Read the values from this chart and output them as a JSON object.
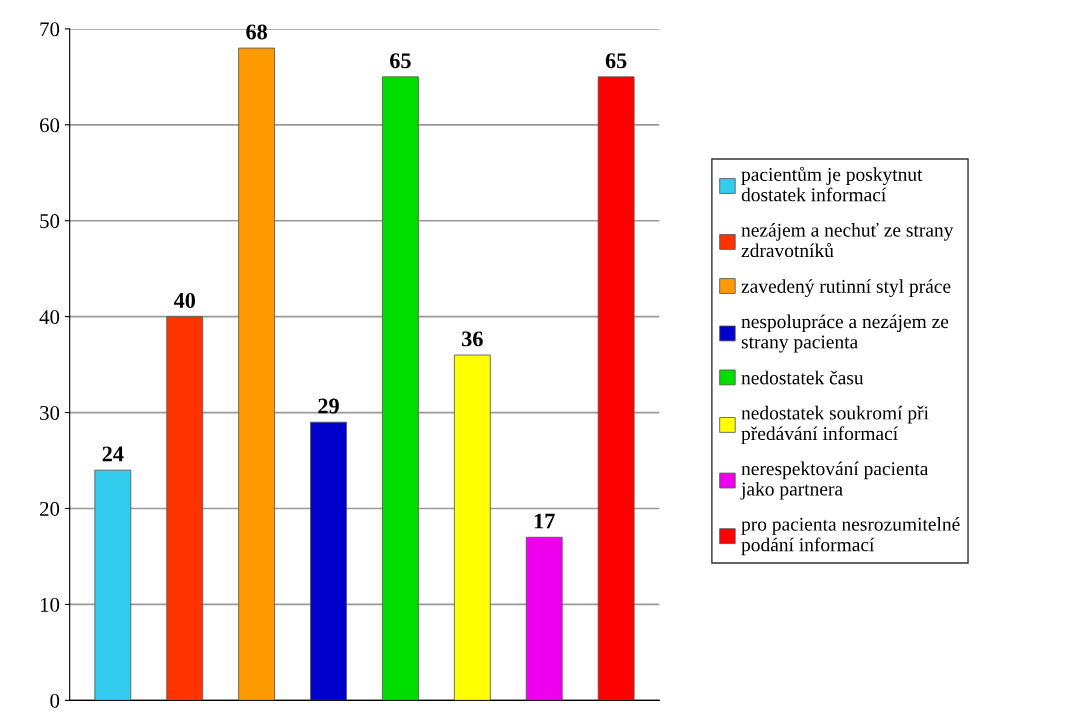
{
  "chart_data": {
    "type": "bar",
    "categories": [
      null,
      null,
      null,
      null,
      null,
      null,
      null,
      null
    ],
    "series": [
      {
        "name": "pacientům je poskytnut\ndostatek informací",
        "color": "#33ccee",
        "values": [
          24,
          null,
          null,
          null,
          null,
          null,
          null,
          null
        ]
      },
      {
        "name": "nezájem a nechuť ze strany\nzdravotníků",
        "color": "#ff3300",
        "values": [
          null,
          40,
          null,
          null,
          null,
          null,
          null,
          null
        ]
      },
      {
        "name": "zavedený rutinní styl práce",
        "color": "#ff9900",
        "values": [
          null,
          null,
          68,
          null,
          null,
          null,
          null,
          null
        ]
      },
      {
        "name": "nespolupráce a nezájem ze\nstrany pacienta",
        "color": "#0000cc",
        "values": [
          null,
          null,
          null,
          29,
          null,
          null,
          null,
          null
        ]
      },
      {
        "name": "nedostatek času",
        "color": "#00dd00",
        "values": [
          null,
          null,
          null,
          null,
          65,
          null,
          null,
          null
        ]
      },
      {
        "name": "nedostatek soukromí při\npředávání informací",
        "color": "#ffff00",
        "values": [
          null,
          null,
          null,
          null,
          null,
          36,
          null,
          null
        ]
      },
      {
        "name": "nerespektování pacienta\njako partnera",
        "color": "#ee00ee",
        "values": [
          null,
          null,
          null,
          null,
          null,
          null,
          17,
          null
        ]
      },
      {
        "name": "pro pacienta nesrozumitelné\npodání informací",
        "color": "#ff0000",
        "values": [
          null,
          null,
          null,
          null,
          null,
          null,
          null,
          65
        ]
      }
    ],
    "ylim": [
      0,
      70
    ],
    "yticks": [
      0,
      10,
      20,
      30,
      40,
      50,
      60,
      70
    ],
    "grid": "y",
    "legend": "right",
    "data_labels": true,
    "tick_labels": "y"
  }
}
